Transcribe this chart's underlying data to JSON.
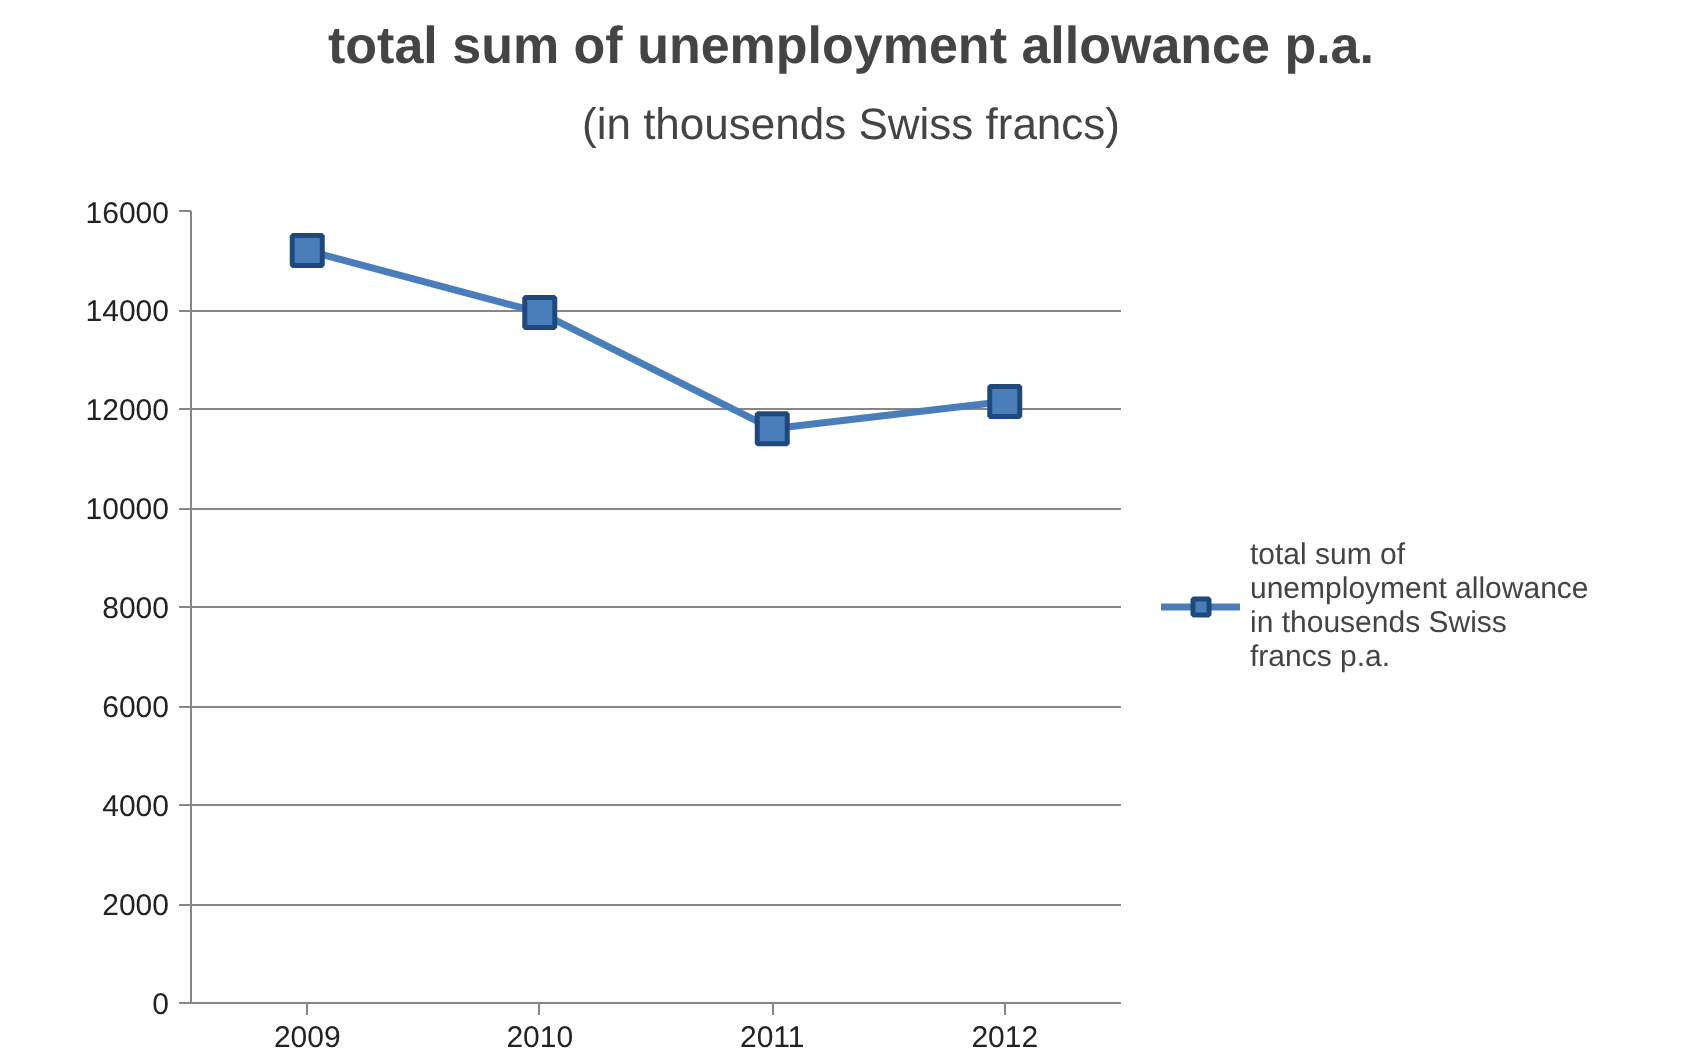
{
  "chart_data": {
    "type": "line",
    "title": "total sum of unemployment allowance p.a.",
    "subtitle": "(in thousends Swiss francs)",
    "categories": [
      "2009",
      "2010",
      "2011",
      "2012"
    ],
    "series": [
      {
        "name": "total sum of unemployment allowance in thousends Swiss francs p.a.",
        "color": "#4a7ebb",
        "values": [
          15200,
          13950,
          11600,
          12150
        ]
      }
    ],
    "ylim": [
      0,
      16000
    ],
    "yticks": [
      0,
      2000,
      4000,
      6000,
      8000,
      10000,
      12000,
      14000,
      16000
    ],
    "grid": "y",
    "legend": "right",
    "marker": "square",
    "line_style": "solid"
  }
}
